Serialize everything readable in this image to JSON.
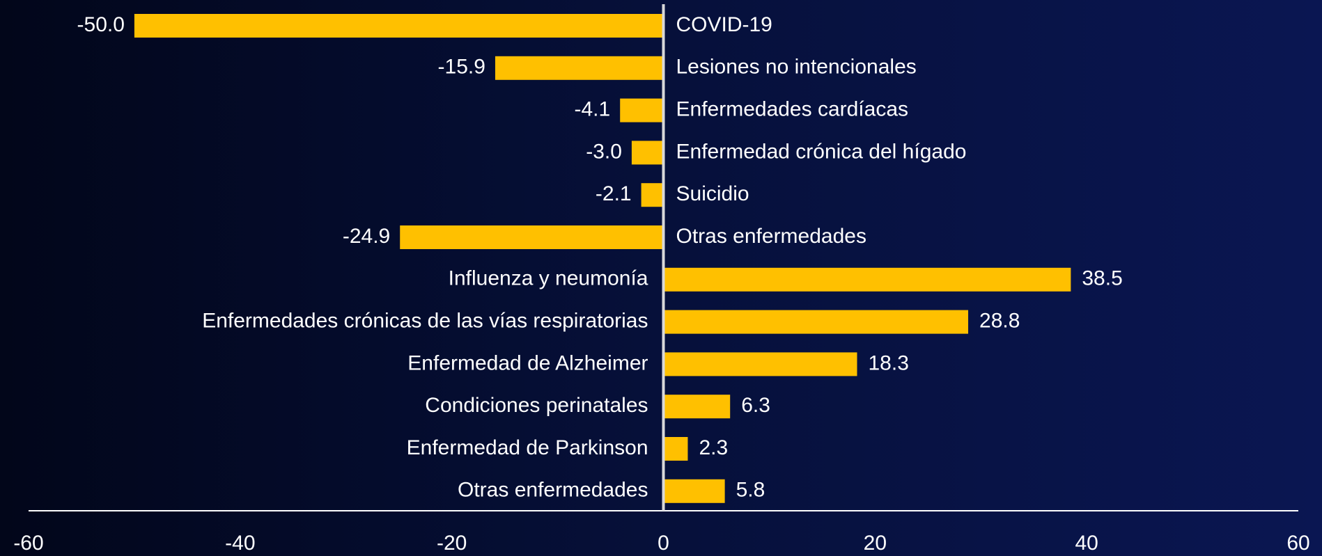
{
  "chart_data": {
    "type": "hbar",
    "categories": [
      "COVID-19",
      "Lesiones no intencionales",
      "Enfermedades cardíacas",
      "Enfermedad crónica del hígado",
      "Suicidio",
      "Otras enfermedades",
      "Influenza y neumonía",
      "Enfermedades crónicas de las vías respiratorias",
      "Enfermedad de Alzheimer",
      "Condiciones perinatales",
      "Enfermedad de Parkinson",
      "Otras enfermedades"
    ],
    "values": [
      -50,
      -15.9,
      -4.1,
      -3,
      -2.1,
      -24.9,
      38.5,
      28.8,
      18.3,
      6.3,
      2.3,
      5.8
    ],
    "value_labels": [
      "-50.0",
      "-15.9",
      "-4.1",
      "-3.0",
      "-2.1",
      "-24.9",
      "38.5",
      "28.8",
      "18.3",
      "6.3",
      "2.3",
      "5.8"
    ],
    "color": "#ffc000",
    "xlim": [
      -60,
      60
    ],
    "xticks": [
      -60,
      -40,
      -20,
      0,
      20,
      40,
      60
    ]
  }
}
